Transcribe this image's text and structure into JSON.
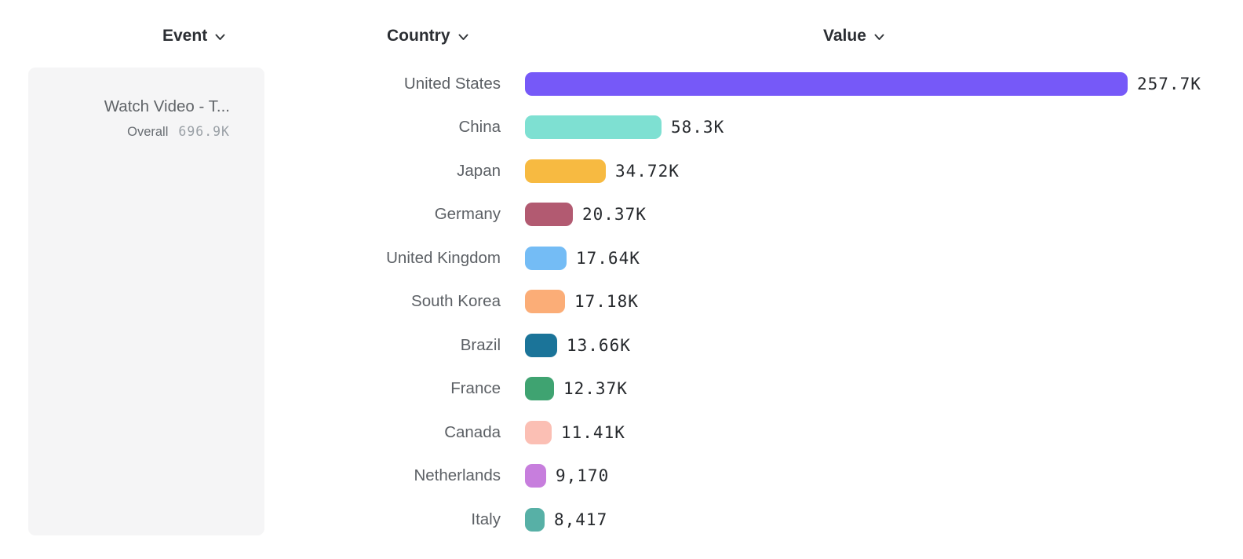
{
  "columns": {
    "event": {
      "label": "Event",
      "icon": "chevron-down"
    },
    "country": {
      "label": "Country",
      "icon": "chevron-down"
    },
    "value": {
      "label": "Value",
      "icon": "chevron-down"
    }
  },
  "event_card": {
    "title": "Watch Video - T...",
    "metric_label": "Overall",
    "metric_value": "696.9K"
  },
  "chart_data": {
    "type": "bar",
    "orientation": "horizontal",
    "title": "",
    "xlabel": "Value",
    "ylabel": "Country",
    "grid": false,
    "legend": false,
    "xlim": [
      0,
      257700
    ],
    "categories": [
      "United States",
      "China",
      "Japan",
      "Germany",
      "United Kingdom",
      "South Korea",
      "Brazil",
      "France",
      "Canada",
      "Netherlands",
      "Italy"
    ],
    "values": [
      257700,
      58300,
      34720,
      20370,
      17640,
      17180,
      13660,
      12370,
      11410,
      9170,
      8417
    ],
    "value_labels": [
      "257.7K",
      "58.3K",
      "34.72K",
      "20.37K",
      "17.64K",
      "17.18K",
      "13.66K",
      "12.37K",
      "11.41K",
      "9,170",
      "8,417"
    ],
    "bar_colors": [
      "#7659f8",
      "#7ee0d2",
      "#f7ba41",
      "#b25a71",
      "#74bcf5",
      "#fbad77",
      "#1b7499",
      "#3fa371",
      "#fbbfb4",
      "#c77edd",
      "#57b0a6"
    ]
  }
}
